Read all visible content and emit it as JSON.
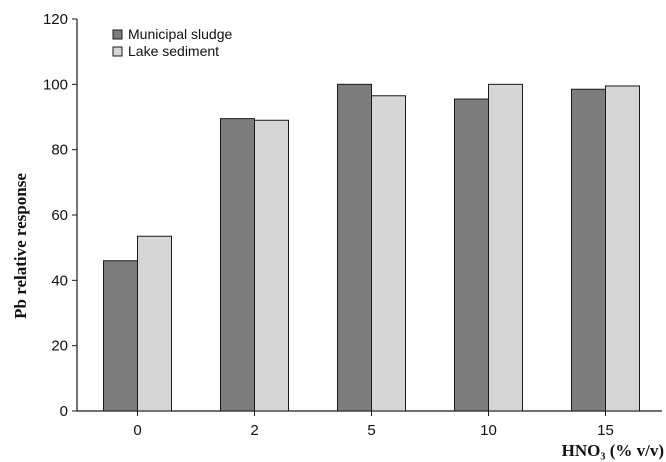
{
  "chart_data": {
    "type": "bar",
    "categories": [
      "0",
      "2",
      "5",
      "10",
      "15"
    ],
    "series": [
      {
        "name": "Municipal sludge",
        "values": [
          46,
          89.5,
          100,
          95.5,
          98.5
        ]
      },
      {
        "name": "Lake sediment",
        "values": [
          53.5,
          89,
          96.5,
          100,
          99.5
        ]
      }
    ],
    "xlabel": "HNO₃ (% v/v)",
    "ylabel": "Pb relative response",
    "ylim": [
      0,
      120
    ],
    "yticks": [
      "0",
      "20",
      "40",
      "60",
      "80",
      "100",
      "120"
    ],
    "grid": false,
    "legend_position": "top-left"
  },
  "colors": {
    "series": [
      "#7d7d7d",
      "#d6d6d6"
    ],
    "stroke": "#1a1a1a"
  }
}
